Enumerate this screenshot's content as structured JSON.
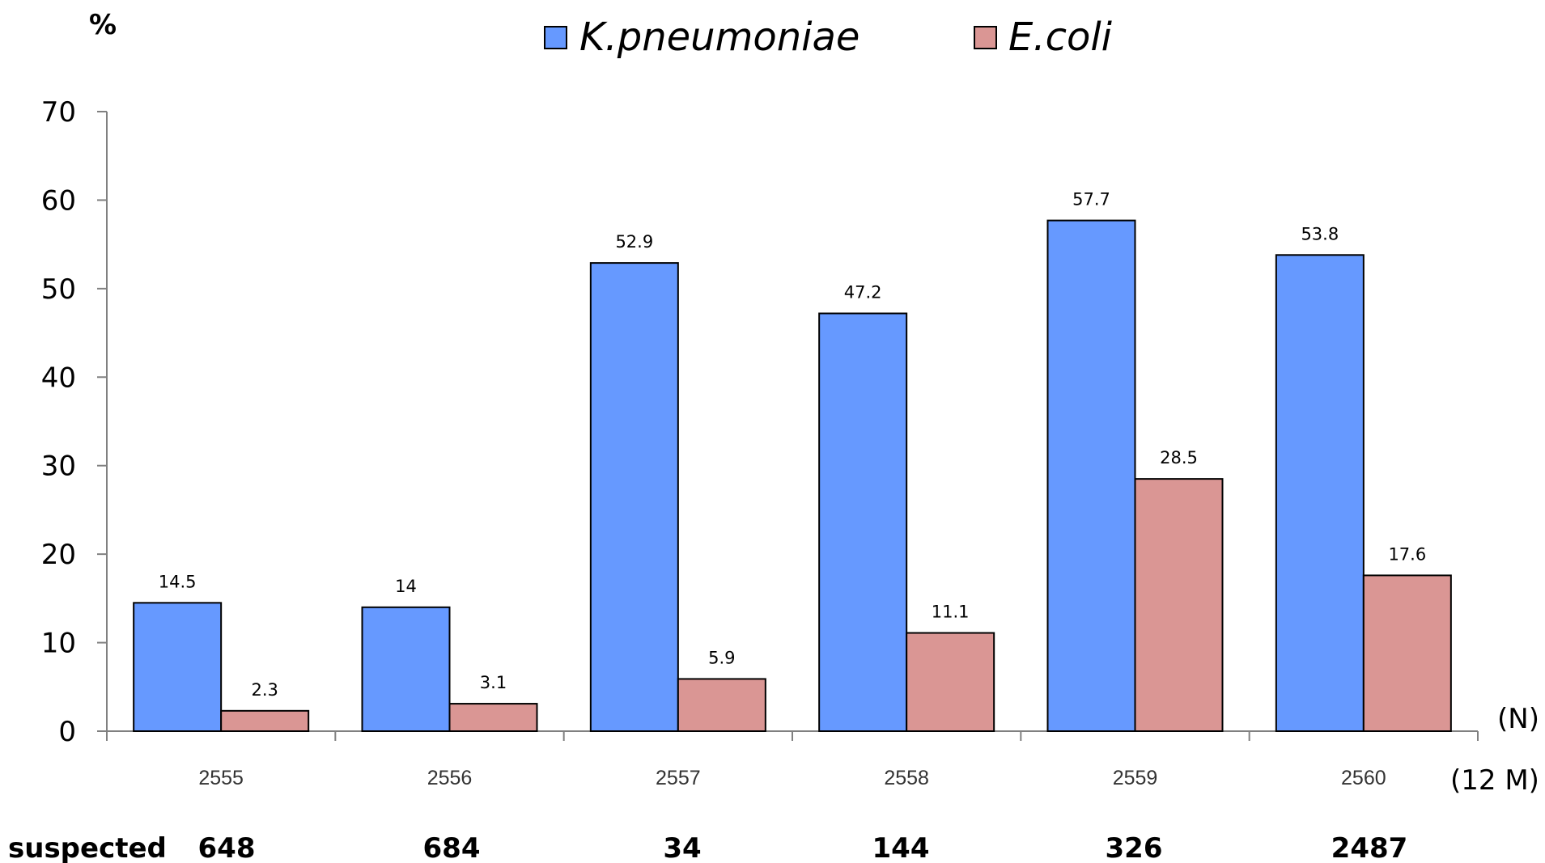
{
  "chart_data": {
    "type": "bar",
    "y_unit": "%",
    "categories": [
      "2555",
      "2556",
      "2557",
      "2558",
      "2559",
      "2560"
    ],
    "series": [
      {
        "name": "K.pneumoniae",
        "color": "#6699FF",
        "values": [
          14.5,
          14,
          52.9,
          47.2,
          57.7,
          53.8
        ]
      },
      {
        "name": "E.coli",
        "color": "#DA9694",
        "values": [
          2.3,
          3.1,
          5.9,
          11.1,
          28.5,
          17.6
        ]
      }
    ],
    "ylim": [
      0,
      70
    ],
    "yticks": [
      0,
      10,
      20,
      30,
      40,
      50,
      60,
      70
    ],
    "grid": false,
    "legend_position": "top-center",
    "n_label": "(N)",
    "period_label": "(12 M)",
    "suspected_label": "suspected",
    "suspected_counts": [
      "648",
      "684",
      "34",
      "144",
      "326",
      "2487"
    ]
  }
}
